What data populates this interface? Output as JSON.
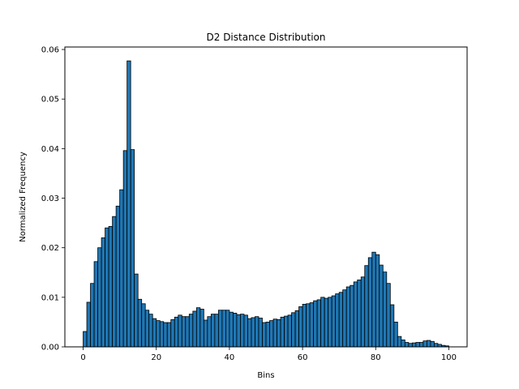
{
  "chart_data": {
    "type": "bar",
    "title": "D2 Distance Distribution",
    "xlabel": "Bins",
    "ylabel": "Normalized Frequency",
    "xlim": [
      -5,
      105
    ],
    "ylim": [
      0,
      0.0605
    ],
    "x_ticks": [
      0,
      20,
      40,
      60,
      80,
      100
    ],
    "y_ticks": [
      0.0,
      0.01,
      0.02,
      0.03,
      0.04,
      0.05,
      0.06
    ],
    "y_tick_labels": [
      "0.00",
      "0.01",
      "0.02",
      "0.03",
      "0.04",
      "0.05",
      "0.06"
    ],
    "x_tick_labels": [
      "0",
      "20",
      "40",
      "60",
      "80",
      "100"
    ],
    "grid": false,
    "bar_color": "#1f77b4",
    "bin_start": 0,
    "bin_step": 1,
    "values": [
      0.0031,
      0.009,
      0.0128,
      0.0172,
      0.02,
      0.022,
      0.024,
      0.0243,
      0.0263,
      0.0284,
      0.0317,
      0.0396,
      0.0577,
      0.0398,
      0.0147,
      0.0096,
      0.0087,
      0.0074,
      0.0066,
      0.0057,
      0.0053,
      0.0051,
      0.0049,
      0.0049,
      0.0055,
      0.006,
      0.0064,
      0.0061,
      0.0061,
      0.0066,
      0.0072,
      0.0079,
      0.0076,
      0.0054,
      0.0061,
      0.0066,
      0.0066,
      0.0074,
      0.0074,
      0.0074,
      0.007,
      0.0068,
      0.0065,
      0.0066,
      0.0064,
      0.0057,
      0.0059,
      0.0061,
      0.0058,
      0.0049,
      0.005,
      0.0053,
      0.0056,
      0.0055,
      0.006,
      0.0062,
      0.0064,
      0.0069,
      0.0073,
      0.0081,
      0.0086,
      0.0087,
      0.0089,
      0.0093,
      0.0095,
      0.01,
      0.0098,
      0.01,
      0.0103,
      0.0107,
      0.011,
      0.0115,
      0.0121,
      0.0124,
      0.0131,
      0.0135,
      0.0141,
      0.0164,
      0.018,
      0.0191,
      0.0186,
      0.0165,
      0.0151,
      0.0128,
      0.0085,
      0.005,
      0.0021,
      0.0014,
      0.0009,
      0.0007,
      0.0008,
      0.0009,
      0.0009,
      0.0012,
      0.0013,
      0.0011,
      0.0007,
      0.0005,
      0.0003,
      0.0002
    ]
  }
}
